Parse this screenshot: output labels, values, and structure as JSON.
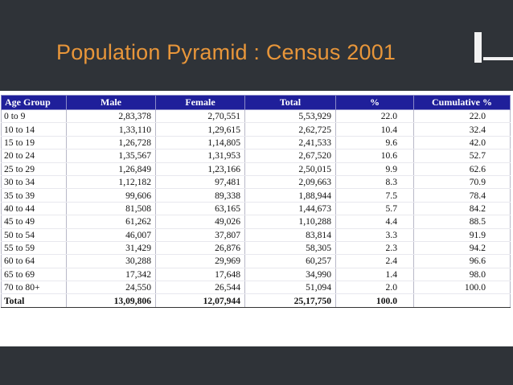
{
  "slide": {
    "title": "Population Pyramid : Census 2001"
  },
  "table": {
    "headers": [
      "Age Group",
      "Male",
      "Female",
      "Total",
      "%",
      "Cumulative %"
    ],
    "rows": [
      [
        "0 to 9",
        "2,83,378",
        "2,70,551",
        "5,53,929",
        "22.0",
        "22.0"
      ],
      [
        "10 to 14",
        "1,33,110",
        "1,29,615",
        "2,62,725",
        "10.4",
        "32.4"
      ],
      [
        "15 to 19",
        "1,26,728",
        "1,14,805",
        "2,41,533",
        "9.6",
        "42.0"
      ],
      [
        "20 to 24",
        "1,35,567",
        "1,31,953",
        "2,67,520",
        "10.6",
        "52.7"
      ],
      [
        "25 to 29",
        "1,26,849",
        "1,23,166",
        "2,50,015",
        "9.9",
        "62.6"
      ],
      [
        "30 to 34",
        "1,12,182",
        "97,481",
        "2,09,663",
        "8.3",
        "70.9"
      ],
      [
        "35 to 39",
        "99,606",
        "89,338",
        "1,88,944",
        "7.5",
        "78.4"
      ],
      [
        "40 to 44",
        "81,508",
        "63,165",
        "1,44,673",
        "5.7",
        "84.2"
      ],
      [
        "45 to 49",
        "61,262",
        "49,026",
        "1,10,288",
        "4.4",
        "88.5"
      ],
      [
        "50 to 54",
        "46,007",
        "37,807",
        "83,814",
        "3.3",
        "91.9"
      ],
      [
        "55 to 59",
        "31,429",
        "26,876",
        "58,305",
        "2.3",
        "94.2"
      ],
      [
        "60 to 64",
        "30,288",
        "29,969",
        "60,257",
        "2.4",
        "96.6"
      ],
      [
        "65 to 69",
        "17,342",
        "17,648",
        "34,990",
        "1.4",
        "98.0"
      ],
      [
        "70 to 80+",
        "24,550",
        "26,544",
        "51,094",
        "2.0",
        "100.0"
      ]
    ],
    "total": [
      "Total",
      "13,09,806",
      "12,07,944",
      "25,17,750",
      "100.0",
      ""
    ]
  },
  "colors": {
    "background": "#2f3338",
    "title": "#e8963a",
    "header_bg": "#1f1f9a",
    "header_text": "#ffffff"
  }
}
